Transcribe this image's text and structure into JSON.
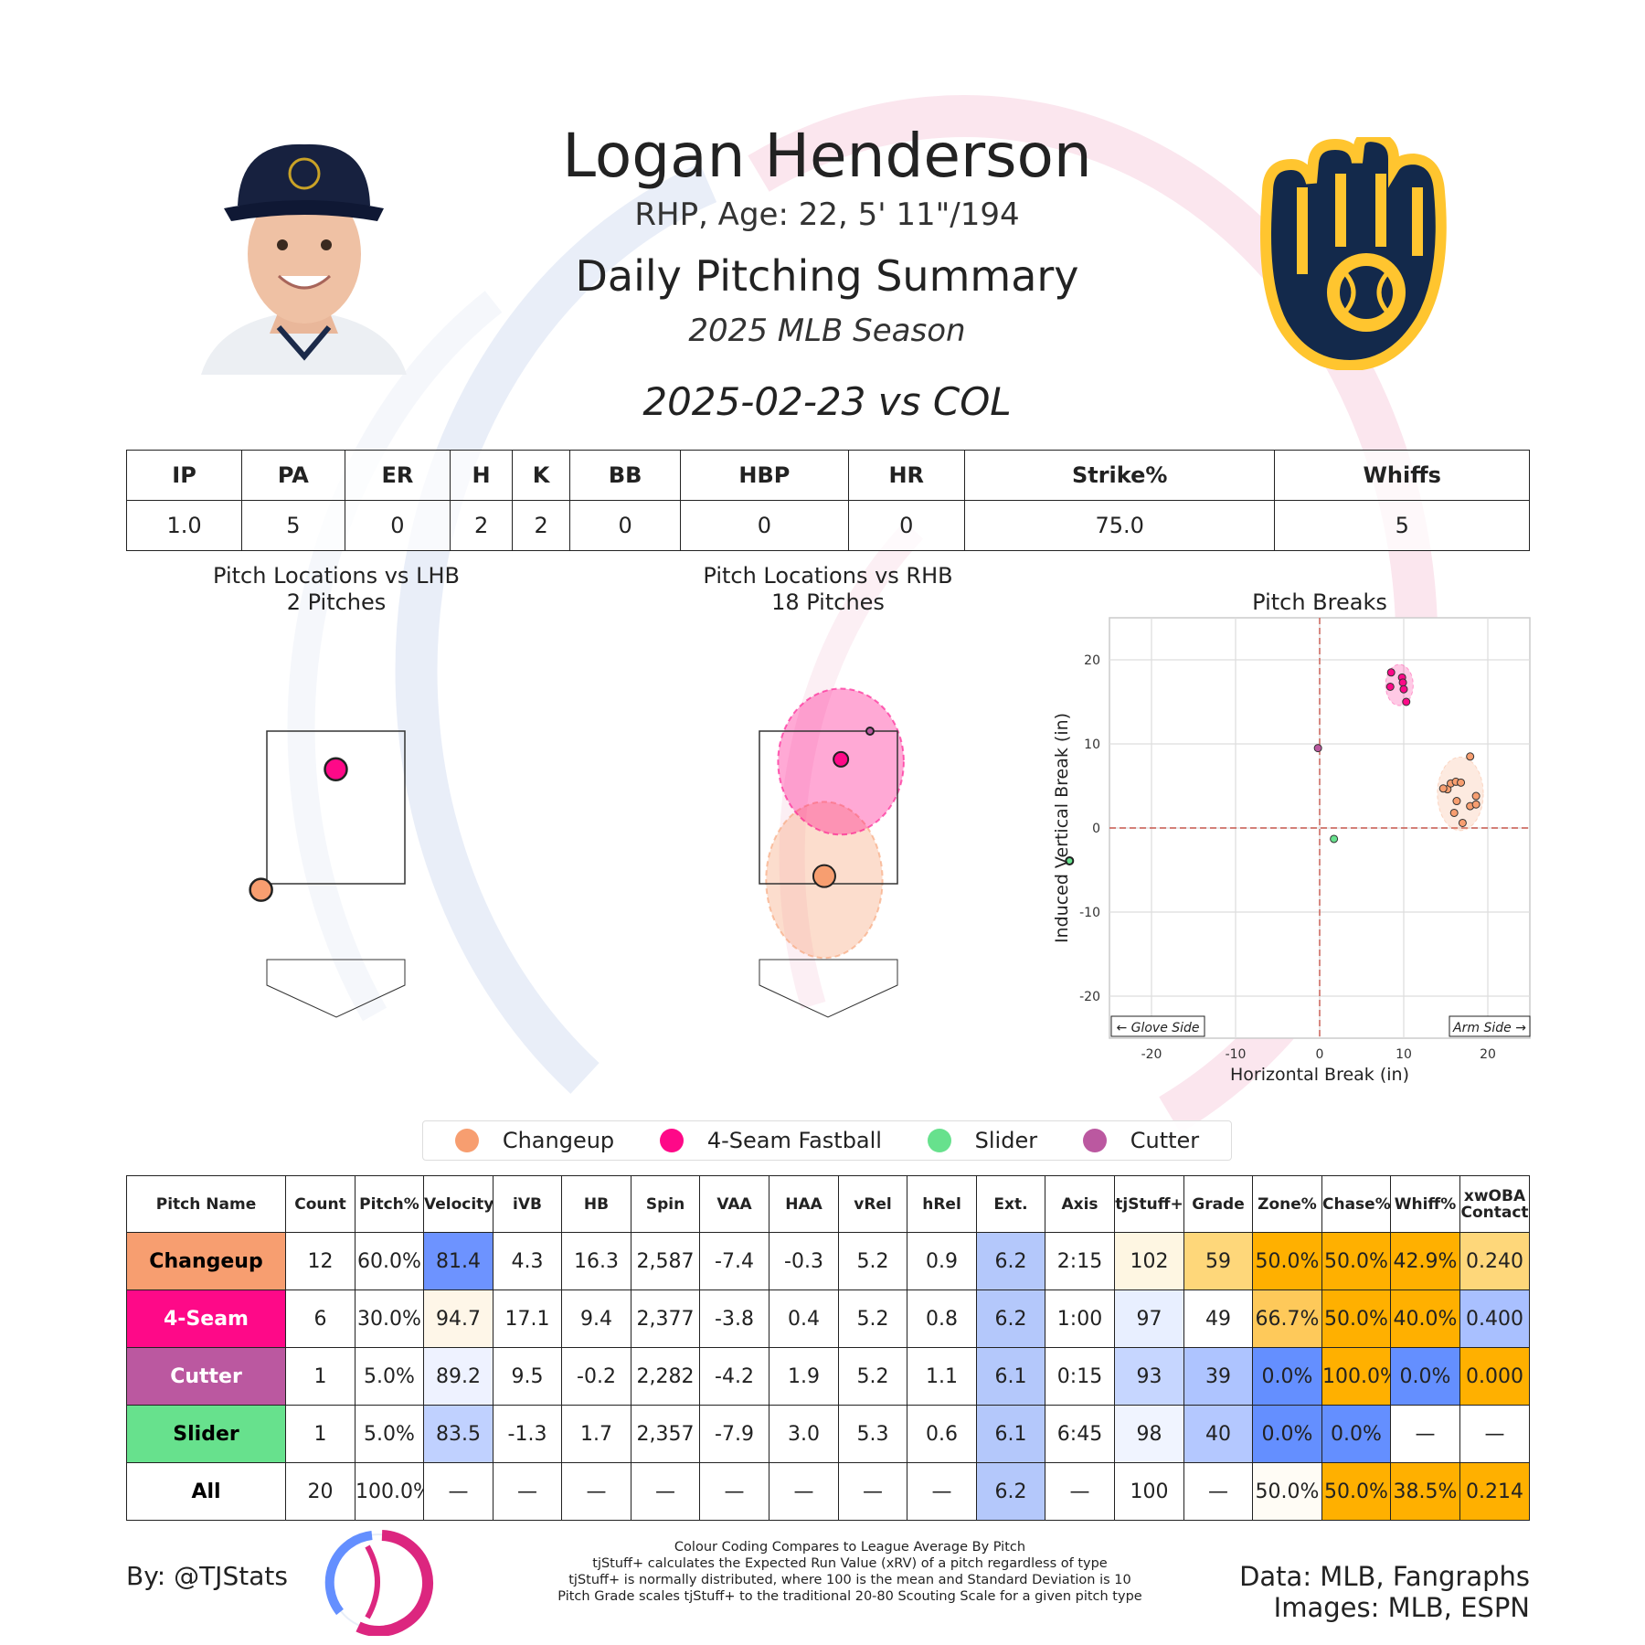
{
  "header": {
    "player_name": "Logan Henderson",
    "player_info": "RHP, Age: 22, 5' 11\"/194",
    "report_title": "Daily Pitching Summary",
    "season": "2025 MLB Season",
    "game_line": "2025-02-23 vs COL"
  },
  "colors": {
    "Changeup": "#f79e70",
    "4-Seam Fastball": "#fe0988",
    "Slider": "#67e18d",
    "Cutter": "#bb58a0",
    "good_max": "#ffb000",
    "bad_max": "#648fff"
  },
  "box_score": {
    "headers": [
      "IP",
      "PA",
      "ER",
      "H",
      "K",
      "BB",
      "HBP",
      "HR",
      "Strike%",
      "Whiffs"
    ],
    "values": [
      "1.0",
      "5",
      "0",
      "2",
      "2",
      "0",
      "0",
      "0",
      "75.0",
      "5"
    ]
  },
  "legend": [
    "Changeup",
    "4-Seam Fastball",
    "Slider",
    "Cutter"
  ],
  "pitch_table": {
    "headers": [
      "Pitch Name",
      "Count",
      "Pitch%",
      "Velocity",
      "iVB",
      "HB",
      "Spin",
      "VAA",
      "HAA",
      "vRel",
      "hRel",
      "Ext.",
      "Axis",
      "tjStuff+",
      "Grade",
      "Zone%",
      "Chase%",
      "Whiff%",
      "xwOBA Contact"
    ],
    "rows": [
      {
        "name": "Changeup",
        "color": "#f79e70",
        "text_color": "#000000",
        "cells": [
          "12",
          "60.0%",
          "81.4",
          "4.3",
          "16.3",
          "2,587",
          "-7.4",
          "-0.3",
          "5.2",
          "0.9",
          "6.2",
          "2:15",
          "102",
          "59",
          "50.0%",
          "50.0%",
          "42.9%",
          "0.240"
        ]
      },
      {
        "name": "4-Seam",
        "color": "#fe0988",
        "text_color": "#ffffff",
        "cells": [
          "6",
          "30.0%",
          "94.7",
          "17.1",
          "9.4",
          "2,377",
          "-3.8",
          "0.4",
          "5.2",
          "0.8",
          "6.2",
          "1:00",
          "97",
          "49",
          "66.7%",
          "50.0%",
          "40.0%",
          "0.400"
        ]
      },
      {
        "name": "Cutter",
        "color": "#bb58a0",
        "text_color": "#ffffff",
        "cells": [
          "1",
          "5.0%",
          "89.2",
          "9.5",
          "-0.2",
          "2,282",
          "-4.2",
          "1.9",
          "5.2",
          "1.1",
          "6.1",
          "0:15",
          "93",
          "39",
          "0.0%",
          "100.0%",
          "0.0%",
          "0.000"
        ]
      },
      {
        "name": "Slider",
        "color": "#67e18d",
        "text_color": "#000000",
        "cells": [
          "1",
          "5.0%",
          "83.5",
          "-1.3",
          "1.7",
          "2,357",
          "-7.9",
          "3.0",
          "5.3",
          "0.6",
          "6.1",
          "6:45",
          "98",
          "40",
          "0.0%",
          "0.0%",
          "—",
          "—"
        ]
      },
      {
        "name": "All",
        "color": "#ffffff",
        "text_color": "#000000",
        "cells": [
          "20",
          "100.0%",
          "—",
          "—",
          "—",
          "—",
          "—",
          "—",
          "—",
          "—",
          "6.2",
          "—",
          "100",
          "—",
          "50.0%",
          "50.0%",
          "38.5%",
          "0.214"
        ]
      }
    ],
    "cell_colors": [
      [
        "#ffffff",
        "#ffffff",
        "#6d93ff",
        "#ffffff",
        "#ffffff",
        "#ffffff",
        "#ffffff",
        "#ffffff",
        "#ffffff",
        "#ffffff",
        "#b4c8fb",
        "#ffffff",
        "#fef6e2",
        "#fed77a",
        "#ffb000",
        "#ffb000",
        "#ffb000",
        "#fed77a"
      ],
      [
        "#ffffff",
        "#ffffff",
        "#fef6e8",
        "#ffffff",
        "#ffffff",
        "#ffffff",
        "#ffffff",
        "#ffffff",
        "#ffffff",
        "#ffffff",
        "#b4c8fb",
        "#ffffff",
        "#e8efff",
        "#ffffff",
        "#fec95a",
        "#ffb000",
        "#ffb000",
        "#a9c0ff"
      ],
      [
        "#ffffff",
        "#ffffff",
        "#eef2ff",
        "#ffffff",
        "#ffffff",
        "#ffffff",
        "#ffffff",
        "#ffffff",
        "#ffffff",
        "#ffffff",
        "#b4c8fb",
        "#ffffff",
        "#c6d6ff",
        "#aec4ff",
        "#648fff",
        "#ffb000",
        "#648fff",
        "#ffb000"
      ],
      [
        "#ffffff",
        "#ffffff",
        "#c0d1ff",
        "#ffffff",
        "#ffffff",
        "#ffffff",
        "#ffffff",
        "#ffffff",
        "#ffffff",
        "#ffffff",
        "#b4c8fb",
        "#ffffff",
        "#f0f4ff",
        "#b4c8ff",
        "#648fff",
        "#648fff",
        "#ffffff",
        "#ffffff"
      ],
      [
        "#ffffff",
        "#ffffff",
        "#ffffff",
        "#ffffff",
        "#ffffff",
        "#ffffff",
        "#ffffff",
        "#ffffff",
        "#ffffff",
        "#ffffff",
        "#b4c8fb",
        "#ffffff",
        "#ffffff",
        "#ffffff",
        "#fffcf5",
        "#ffb000",
        "#ffb000",
        "#ffb000"
      ]
    ]
  },
  "chart_data": [
    {
      "type": "scatter",
      "title": "Pitch Locations vs LHB",
      "subtitle": "2 Pitches",
      "points": [
        {
          "pitch": "4-Seam Fastball",
          "px": 0.0,
          "pz": 3.0
        },
        {
          "pitch": "Changeup",
          "px": -0.9,
          "pz": 1.42
        }
      ]
    },
    {
      "type": "scatter",
      "title": "Pitch Locations vs RHB",
      "subtitle": "18 Pitches",
      "points": [
        {
          "pitch": "Cutter",
          "px": 0.5,
          "pz": 3.5
        },
        {
          "pitch": "4-Seam Fastball",
          "px": 0.15,
          "pz": 3.13
        },
        {
          "pitch": "Changeup",
          "px": -0.05,
          "pz": 1.6
        },
        {
          "pitch": "Slider",
          "px": 2.9,
          "pz": 1.8
        }
      ],
      "density": [
        {
          "pitch": "4-Seam Fastball",
          "cx": 0.15,
          "cz": 3.1,
          "rx": 1.35,
          "rz": 1.45
        },
        {
          "pitch": "Changeup",
          "cx": -0.05,
          "cz": 1.55,
          "rx": 1.25,
          "rz": 1.55
        }
      ]
    },
    {
      "type": "scatter",
      "title": "Pitch Breaks",
      "xlabel": "Horizontal Break (in)",
      "ylabel": "Induced Vertical Break (in)",
      "xlim": [
        -25,
        25
      ],
      "ylim": [
        -25,
        25
      ],
      "xticks": [
        -20,
        -10,
        0,
        10,
        20
      ],
      "yticks": [
        20,
        10,
        0,
        -10,
        -20
      ],
      "grid": true,
      "annotations": {
        "left": "← Glove Side",
        "right": "Arm Side →"
      },
      "series": [
        {
          "name": "Changeup",
          "points": [
            [
              15.2,
              4.6
            ],
            [
              14.7,
              4.7
            ],
            [
              15.6,
              5.3
            ],
            [
              16.2,
              5.5
            ],
            [
              16.8,
              5.4
            ],
            [
              16.3,
              3.2
            ],
            [
              16.0,
              1.8
            ],
            [
              17.0,
              0.6
            ],
            [
              17.9,
              2.6
            ],
            [
              18.6,
              3.8
            ],
            [
              18.6,
              2.8
            ],
            [
              17.9,
              8.5
            ]
          ]
        },
        {
          "name": "4-Seam Fastball",
          "points": [
            [
              8.5,
              18.5
            ],
            [
              9.8,
              17.9
            ],
            [
              9.9,
              17.3
            ],
            [
              8.4,
              16.8
            ],
            [
              10.0,
              16.5
            ],
            [
              10.3,
              15.0
            ]
          ]
        },
        {
          "name": "Cutter",
          "points": [
            [
              -0.2,
              9.5
            ]
          ]
        },
        {
          "name": "Slider",
          "points": [
            [
              1.7,
              -1.3
            ]
          ]
        }
      ]
    }
  ],
  "footer": {
    "by": "By: @TJStats",
    "note1": "Colour Coding Compares to League Average By Pitch",
    "note2": "tjStuff+ calculates the Expected Run Value (xRV) of a pitch regardless of type",
    "note3": "tjStuff+ is normally distributed, where 100 is the mean and Standard Deviation is 10",
    "note4": "Pitch Grade scales tjStuff+ to the traditional 20-80 Scouting Scale for a given pitch type",
    "data_source": "Data: MLB, Fangraphs",
    "image_source": "Images: MLB, ESPN"
  }
}
